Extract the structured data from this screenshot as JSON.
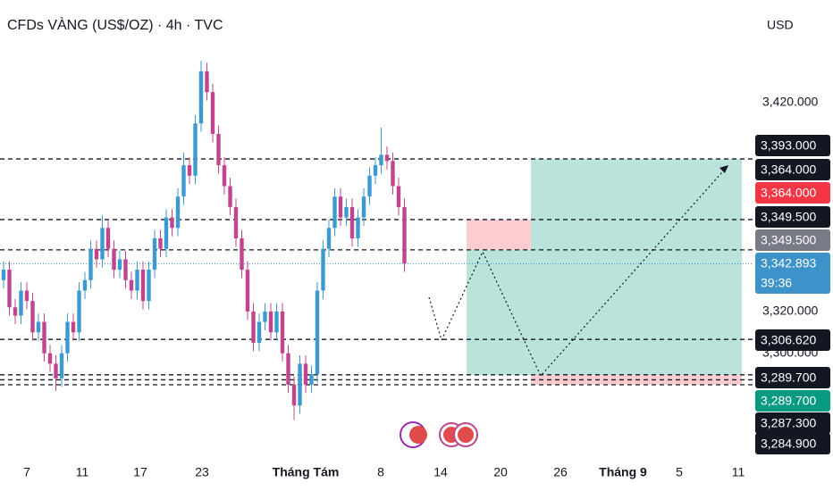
{
  "chart_data": {
    "type": "candlestick",
    "title": "CFDs VÀNG (US$/OZ) · 4h · TVC",
    "currency": "USD",
    "ylim": [
      3250.3,
      3469.1
    ],
    "yticks": [
      {
        "value": 3420,
        "label": "3,420.000"
      },
      {
        "value": 3320,
        "label": "3,320.000"
      },
      {
        "value": 3300,
        "label": "3,300.000"
      }
    ],
    "xticks": [
      "7",
      "11",
      "17",
      "23",
      "Tháng Tám",
      "8",
      "14",
      "20",
      "26",
      "Tháng 9",
      "5",
      "11"
    ],
    "up_color": "#3d9ad1",
    "down_color": "#c0458e",
    "ohlc": [
      [
        3335,
        3344,
        3331,
        3340
      ],
      [
        3340,
        3344,
        3318,
        3322
      ],
      [
        3322,
        3326,
        3314,
        3318
      ],
      [
        3318,
        3334,
        3314,
        3330
      ],
      [
        3330,
        3334,
        3321,
        3325
      ],
      [
        3325,
        3329,
        3306,
        3310
      ],
      [
        3310,
        3319,
        3306,
        3315
      ],
      [
        3315,
        3319,
        3296,
        3300
      ],
      [
        3300,
        3304,
        3291,
        3295
      ],
      [
        3295,
        3299,
        3282,
        3288
      ],
      [
        3288,
        3304,
        3284,
        3300
      ],
      [
        3300,
        3319,
        3296,
        3315
      ],
      [
        3315,
        3319,
        3306,
        3310
      ],
      [
        3310,
        3334,
        3306,
        3330
      ],
      [
        3330,
        3339,
        3326,
        3335
      ],
      [
        3335,
        3354,
        3331,
        3350
      ],
      [
        3350,
        3354,
        3341,
        3345
      ],
      [
        3345,
        3366,
        3341,
        3360
      ],
      [
        3360,
        3364,
        3346,
        3350
      ],
      [
        3350,
        3354,
        3336,
        3340
      ],
      [
        3340,
        3349,
        3336,
        3345
      ],
      [
        3345,
        3349,
        3331,
        3335
      ],
      [
        3335,
        3339,
        3326,
        3330
      ],
      [
        3330,
        3344,
        3326,
        3340
      ],
      [
        3340,
        3344,
        3321,
        3325
      ],
      [
        3325,
        3344,
        3321,
        3340
      ],
      [
        3340,
        3359,
        3336,
        3355
      ],
      [
        3355,
        3359,
        3346,
        3350
      ],
      [
        3350,
        3369,
        3346,
        3365
      ],
      [
        3365,
        3369,
        3356,
        3360
      ],
      [
        3360,
        3379,
        3356,
        3375
      ],
      [
        3375,
        3396,
        3371,
        3390
      ],
      [
        3390,
        3394,
        3381,
        3385
      ],
      [
        3385,
        3414,
        3381,
        3410
      ],
      [
        3410,
        3440,
        3406,
        3435
      ],
      [
        3435,
        3439,
        3421,
        3425
      ],
      [
        3425,
        3429,
        3401,
        3405
      ],
      [
        3405,
        3409,
        3386,
        3390
      ],
      [
        3390,
        3394,
        3376,
        3380
      ],
      [
        3380,
        3384,
        3366,
        3370
      ],
      [
        3370,
        3374,
        3351,
        3355
      ],
      [
        3355,
        3359,
        3336,
        3340
      ],
      [
        3340,
        3344,
        3316,
        3320
      ],
      [
        3320,
        3324,
        3301,
        3305
      ],
      [
        3305,
        3319,
        3301,
        3315
      ],
      [
        3315,
        3324,
        3311,
        3320
      ],
      [
        3320,
        3324,
        3306,
        3310
      ],
      [
        3310,
        3324,
        3306,
        3320
      ],
      [
        3320,
        3324,
        3296,
        3300
      ],
      [
        3300,
        3304,
        3281,
        3285
      ],
      [
        3285,
        3289,
        3268,
        3275
      ],
      [
        3275,
        3299,
        3271,
        3295
      ],
      [
        3295,
        3299,
        3281,
        3285
      ],
      [
        3285,
        3294,
        3281,
        3290
      ],
      [
        3290,
        3334,
        3286,
        3330
      ],
      [
        3330,
        3354,
        3326,
        3350
      ],
      [
        3350,
        3364,
        3346,
        3360
      ],
      [
        3360,
        3379,
        3356,
        3375
      ],
      [
        3375,
        3379,
        3361,
        3365
      ],
      [
        3365,
        3374,
        3361,
        3370
      ],
      [
        3370,
        3374,
        3351,
        3355
      ],
      [
        3355,
        3369,
        3351,
        3365
      ],
      [
        3365,
        3379,
        3361,
        3375
      ],
      [
        3375,
        3389,
        3371,
        3385
      ],
      [
        3385,
        3394,
        3381,
        3390
      ],
      [
        3390,
        3408,
        3386,
        3395
      ],
      [
        3395,
        3399,
        3388,
        3392
      ],
      [
        3392,
        3396,
        3376,
        3380
      ],
      [
        3380,
        3384,
        3366,
        3370
      ],
      [
        3370,
        3374,
        3339,
        3343
      ]
    ],
    "levels": [
      3393,
      3364,
      3349.5,
      3306.62,
      3289.7,
      3287.3,
      3284.9
    ],
    "current_price": 3342.893,
    "countdown": "39:36",
    "price_tags": [
      {
        "value": 3393,
        "label": "3,393.000",
        "color": "#131722"
      },
      {
        "value": 3364,
        "label": "3,364.000",
        "color": "#131722"
      },
      {
        "value": 3364,
        "label": "3,364.000",
        "color": "#f23645"
      },
      {
        "value": 3349.5,
        "label": "3,349.500",
        "color": "#131722"
      },
      {
        "value": 3349.5,
        "label": "3,349.500",
        "color": "#787b86"
      },
      {
        "value": 3342.893,
        "label": "3,342.893",
        "color": "#3d93c9"
      },
      {
        "value": 3306.62,
        "label": "3,306.620",
        "color": "#131722"
      },
      {
        "value": 3289.7,
        "label": "3,289.700",
        "color": "#131722"
      },
      {
        "value": 3289.7,
        "label": "3,289.700",
        "color": "#089981"
      },
      {
        "value": 3287.3,
        "label": "3,287.300",
        "color": "#131722"
      },
      {
        "value": 3284.9,
        "label": "3,284.900",
        "color": "#131722"
      }
    ]
  }
}
